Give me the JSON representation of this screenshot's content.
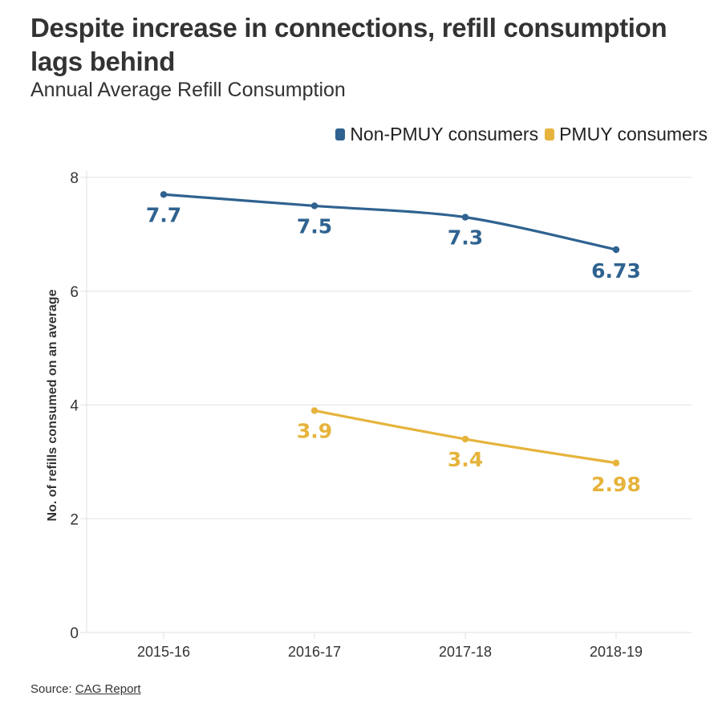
{
  "header": {
    "title": "Despite increase in connections, refill consumption lags behind",
    "subtitle": "Annual Average Refill Consumption"
  },
  "legend": [
    {
      "label": "Non-PMUY consumers",
      "color": "#2f6290"
    },
    {
      "label": "PMUY consumers",
      "color": "#e6b43c"
    }
  ],
  "footer": {
    "source_prefix": "Source:",
    "source_link": "CAG Report"
  },
  "chart_data": {
    "type": "line",
    "title": "Despite increase in connections, refill consumption lags behind",
    "subtitle": "Annual Average Refill Consumption",
    "xlabel": "",
    "ylabel": "No. of refills consumed on an average",
    "categories": [
      "2015-16",
      "2016-17",
      "2017-18",
      "2018-19"
    ],
    "ylim": [
      0,
      8
    ],
    "yticks": [
      0,
      2,
      4,
      6,
      8
    ],
    "grid": true,
    "legend_position": "top-right",
    "series": [
      {
        "name": "Non-PMUY consumers",
        "color": "#2f6290",
        "values": [
          7.7,
          7.5,
          7.3,
          6.73
        ],
        "labels": [
          "7.7",
          "7.5",
          "7.3",
          "6.73"
        ]
      },
      {
        "name": "PMUY consumers",
        "color": "#e6b43c",
        "values": [
          null,
          3.9,
          3.4,
          2.98
        ],
        "labels": [
          "",
          "3.9",
          "3.4",
          "2.98"
        ]
      }
    ]
  }
}
